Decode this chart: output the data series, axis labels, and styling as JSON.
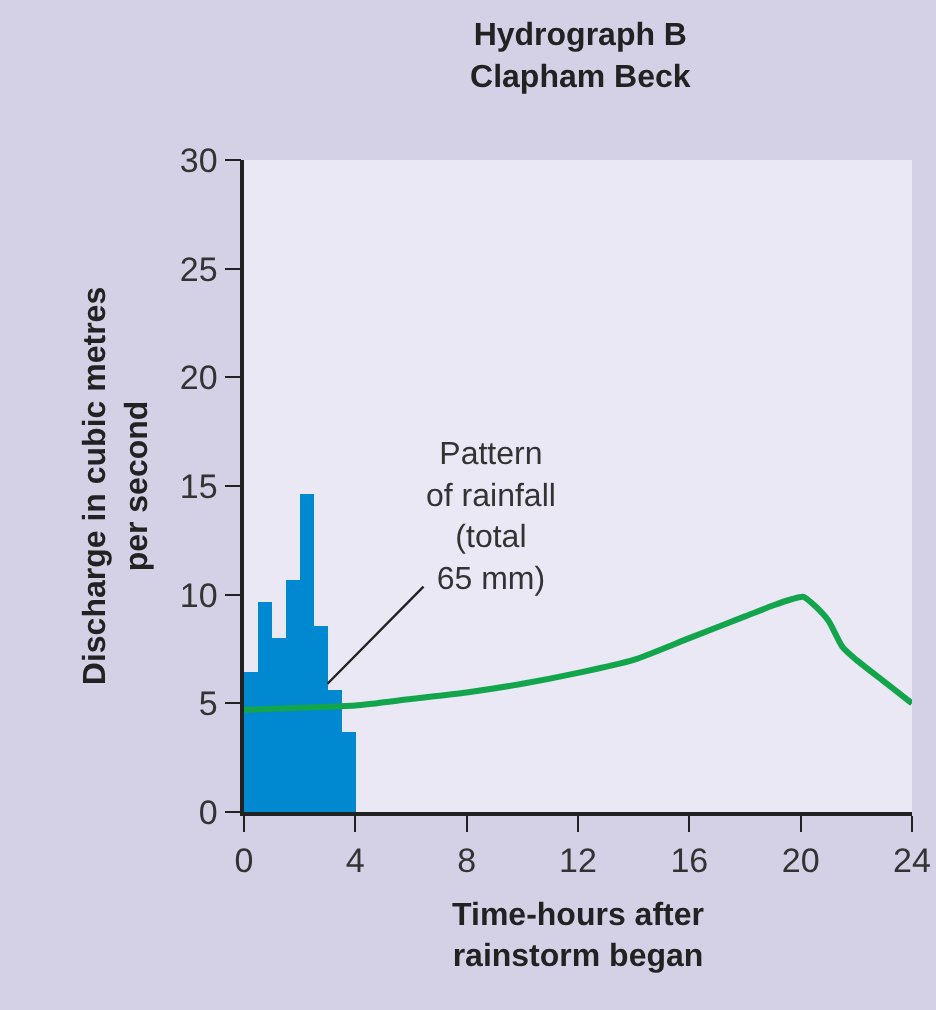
{
  "chart_data": {
    "type": "line",
    "title": "Hydrograph B\nClapham Beck",
    "xlabel": "Time-hours after\nrainstorm began",
    "ylabel": "Discharge in cubic metres\nper second",
    "xlim": [
      0,
      24
    ],
    "xticks": [
      0,
      4,
      8,
      12,
      16,
      20,
      24
    ],
    "ylim": [
      0,
      30
    ],
    "yticks": [
      0,
      5,
      10,
      15,
      20,
      25,
      30
    ],
    "annotations": [
      {
        "text": "Pattern\nof rainfall\n(total\n65 mm)",
        "x": 3.0,
        "y": 5.9
      }
    ],
    "series": [
      {
        "type": "histogram",
        "color": "#0088d1",
        "bins": [
          0,
          0.5,
          1,
          1.5,
          2,
          2.5,
          3,
          3.5,
          4
        ],
        "values": [
          6.4,
          9.7,
          8.0,
          10.7,
          14.6,
          8.6,
          5.6,
          3.7
        ]
      },
      {
        "color": "#13a54b",
        "x": [
          0,
          2,
          4,
          6,
          8,
          10,
          12,
          14,
          16,
          18,
          19,
          19.7,
          20.1,
          20.5,
          21,
          21.5,
          22,
          23,
          24
        ],
        "values": [
          4.7,
          4.8,
          4.9,
          5.2,
          5.5,
          5.9,
          6.4,
          7.0,
          8.0,
          9.0,
          9.5,
          9.8,
          9.9,
          9.5,
          8.8,
          7.6,
          7.0,
          6.0,
          5.0
        ]
      }
    ]
  }
}
